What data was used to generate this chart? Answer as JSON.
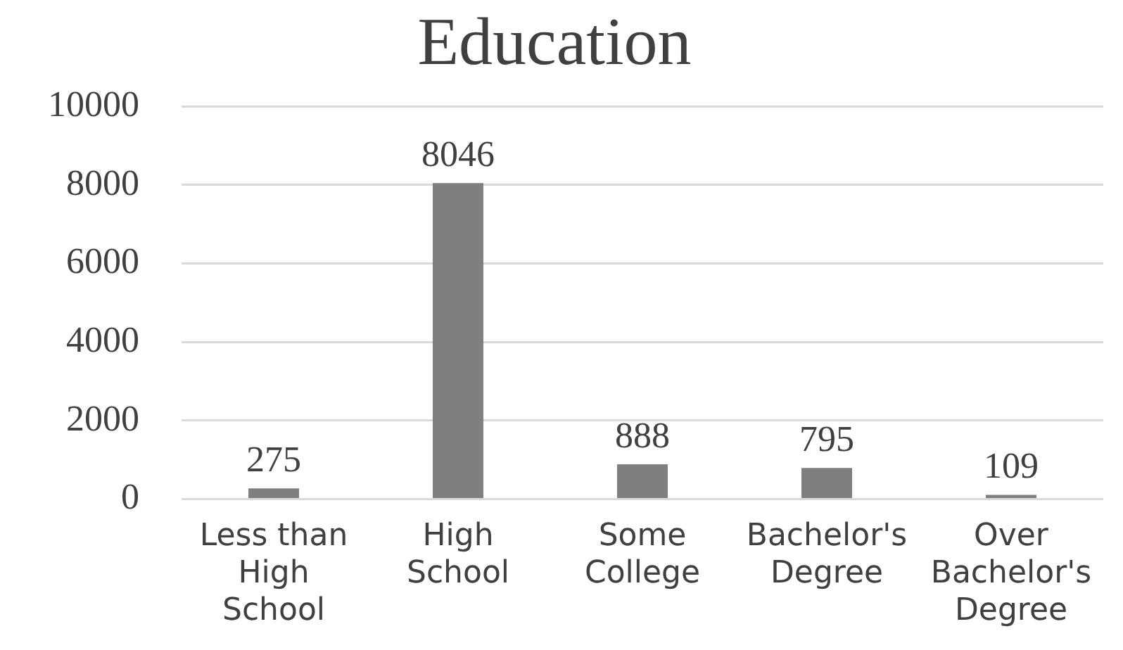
{
  "chart_data": {
    "type": "bar",
    "title": "Education",
    "categories": [
      "Less than High School",
      "High School",
      "Some College",
      "Bachelor's Degree",
      "Over Bachelor's Degree"
    ],
    "values": [
      275,
      8046,
      888,
      795,
      109
    ],
    "color": "#7f7f7f",
    "ylim": [
      0,
      10000
    ],
    "yticks": [
      0,
      2000,
      4000,
      6000,
      8000,
      10000
    ],
    "grid": "y",
    "legend": false,
    "data_labels": true
  }
}
